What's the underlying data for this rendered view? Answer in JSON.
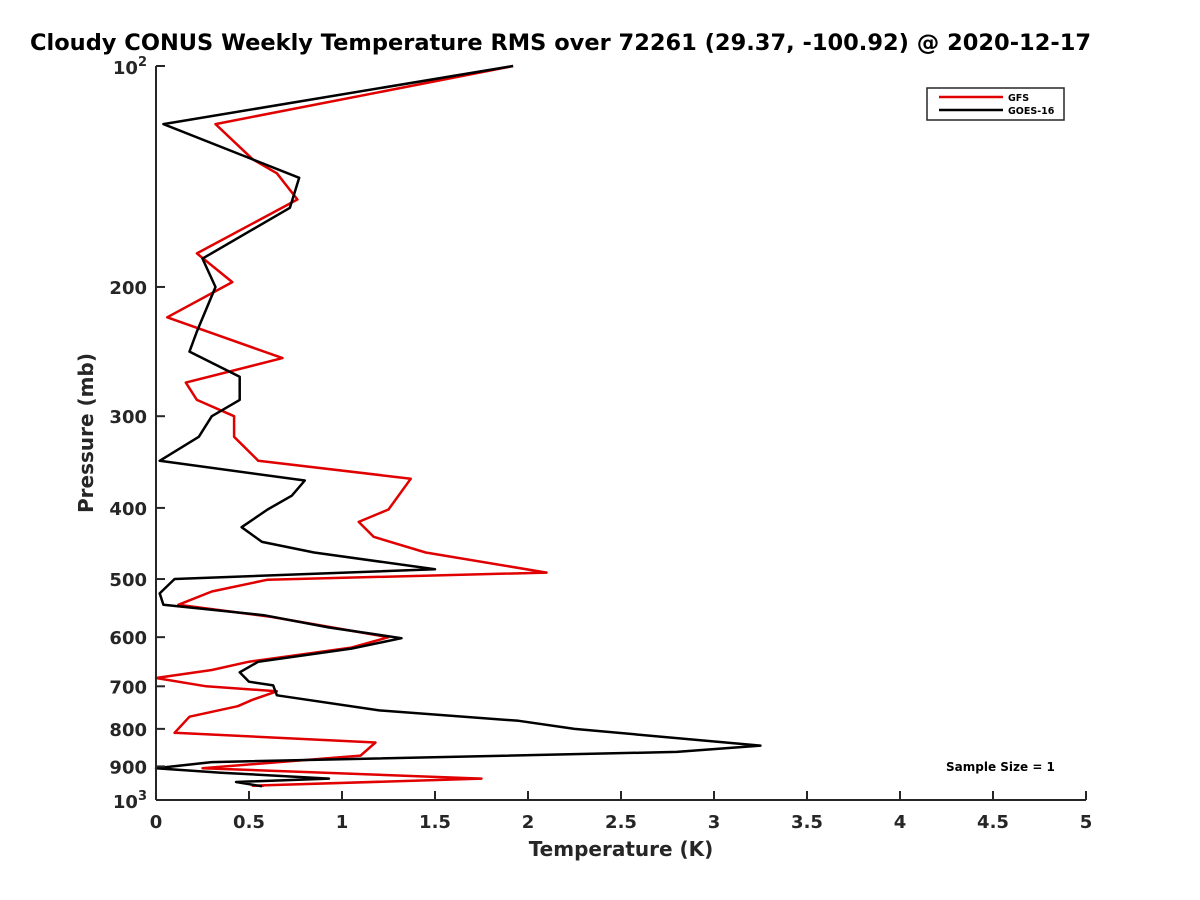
{
  "chart_data": {
    "type": "line",
    "title": "Cloudy CONUS Weekly Temperature RMS over 72261 (29.37, -100.92) @ 2020-12-17",
    "xlabel": "Temperature (K)",
    "ylabel": "Pressure (mb)",
    "xlim": [
      0,
      5
    ],
    "ylim": [
      100,
      1000
    ],
    "yscale": "log",
    "yreversed": true,
    "grid": false,
    "legend_position": "top-right",
    "x_ticks": [
      {
        "value": 0,
        "label": "0"
      },
      {
        "value": 0.5,
        "label": "0.5"
      },
      {
        "value": 1,
        "label": "1"
      },
      {
        "value": 1.5,
        "label": "1.5"
      },
      {
        "value": 2,
        "label": "2"
      },
      {
        "value": 2.5,
        "label": "2.5"
      },
      {
        "value": 3,
        "label": "3"
      },
      {
        "value": 3.5,
        "label": "3.5"
      },
      {
        "value": 4,
        "label": "4"
      },
      {
        "value": 4.5,
        "label": "4.5"
      },
      {
        "value": 5,
        "label": "5"
      }
    ],
    "y_ticks": [
      {
        "value": 100,
        "base": "10",
        "exp": "2"
      },
      {
        "value": 200,
        "label": "200"
      },
      {
        "value": 300,
        "label": "300"
      },
      {
        "value": 400,
        "label": "400"
      },
      {
        "value": 500,
        "label": "500"
      },
      {
        "value": 600,
        "label": "600"
      },
      {
        "value": 700,
        "label": "700"
      },
      {
        "value": 800,
        "label": "800"
      },
      {
        "value": 900,
        "label": "900"
      },
      {
        "value": 1000,
        "base": "10",
        "exp": "3"
      }
    ],
    "annotation": "Sample Size = 1",
    "series": [
      {
        "name": "GFS",
        "color": "#e00000",
        "points": [
          {
            "x": 1.92,
            "p": 100
          },
          {
            "x": 0.32,
            "p": 120
          },
          {
            "x": 0.52,
            "p": 134
          },
          {
            "x": 0.65,
            "p": 140
          },
          {
            "x": 0.76,
            "p": 152
          },
          {
            "x": 0.22,
            "p": 180
          },
          {
            "x": 0.41,
            "p": 197
          },
          {
            "x": 0.06,
            "p": 220
          },
          {
            "x": 0.68,
            "p": 250
          },
          {
            "x": 0.16,
            "p": 270
          },
          {
            "x": 0.22,
            "p": 285
          },
          {
            "x": 0.42,
            "p": 300
          },
          {
            "x": 0.42,
            "p": 320
          },
          {
            "x": 0.55,
            "p": 345
          },
          {
            "x": 1.37,
            "p": 365
          },
          {
            "x": 1.25,
            "p": 402
          },
          {
            "x": 1.09,
            "p": 418
          },
          {
            "x": 1.17,
            "p": 438
          },
          {
            "x": 1.45,
            "p": 460
          },
          {
            "x": 2.1,
            "p": 490
          },
          {
            "x": 0.6,
            "p": 501
          },
          {
            "x": 0.3,
            "p": 520
          },
          {
            "x": 0.12,
            "p": 542
          },
          {
            "x": 0.62,
            "p": 563
          },
          {
            "x": 1.25,
            "p": 600
          },
          {
            "x": 1.05,
            "p": 620
          },
          {
            "x": 0.5,
            "p": 648
          },
          {
            "x": 0.3,
            "p": 665
          },
          {
            "x": 0.0,
            "p": 682
          },
          {
            "x": 0.27,
            "p": 700
          },
          {
            "x": 0.65,
            "p": 711
          },
          {
            "x": 0.52,
            "p": 730
          },
          {
            "x": 0.44,
            "p": 745
          },
          {
            "x": 0.18,
            "p": 770
          },
          {
            "x": 0.1,
            "p": 810
          },
          {
            "x": 1.18,
            "p": 835
          },
          {
            "x": 1.1,
            "p": 870
          },
          {
            "x": 0.25,
            "p": 905
          },
          {
            "x": 1.75,
            "p": 935
          },
          {
            "x": 0.52,
            "p": 956
          },
          {
            "x": 0.58,
            "p": 956
          }
        ]
      },
      {
        "name": "GOES-16",
        "color": "#000000",
        "points": [
          {
            "x": 1.92,
            "p": 100
          },
          {
            "x": 0.04,
            "p": 120
          },
          {
            "x": 0.77,
            "p": 142
          },
          {
            "x": 0.72,
            "p": 156
          },
          {
            "x": 0.25,
            "p": 183
          },
          {
            "x": 0.32,
            "p": 200
          },
          {
            "x": 0.22,
            "p": 230
          },
          {
            "x": 0.18,
            "p": 245
          },
          {
            "x": 0.45,
            "p": 265
          },
          {
            "x": 0.45,
            "p": 285
          },
          {
            "x": 0.3,
            "p": 300
          },
          {
            "x": 0.23,
            "p": 320
          },
          {
            "x": 0.02,
            "p": 345
          },
          {
            "x": 0.8,
            "p": 367
          },
          {
            "x": 0.73,
            "p": 385
          },
          {
            "x": 0.6,
            "p": 402
          },
          {
            "x": 0.46,
            "p": 425
          },
          {
            "x": 0.57,
            "p": 445
          },
          {
            "x": 0.85,
            "p": 460
          },
          {
            "x": 1.5,
            "p": 485
          },
          {
            "x": 0.1,
            "p": 500
          },
          {
            "x": 0.02,
            "p": 523
          },
          {
            "x": 0.04,
            "p": 542
          },
          {
            "x": 0.58,
            "p": 560
          },
          {
            "x": 0.93,
            "p": 582
          },
          {
            "x": 1.32,
            "p": 602
          },
          {
            "x": 1.05,
            "p": 622
          },
          {
            "x": 0.55,
            "p": 648
          },
          {
            "x": 0.45,
            "p": 670
          },
          {
            "x": 0.5,
            "p": 690
          },
          {
            "x": 0.63,
            "p": 698
          },
          {
            "x": 0.65,
            "p": 720
          },
          {
            "x": 1.2,
            "p": 755
          },
          {
            "x": 1.95,
            "p": 780
          },
          {
            "x": 2.25,
            "p": 800
          },
          {
            "x": 3.25,
            "p": 843
          },
          {
            "x": 2.8,
            "p": 860
          },
          {
            "x": 0.3,
            "p": 888
          },
          {
            "x": 0.0,
            "p": 905
          },
          {
            "x": 0.35,
            "p": 918
          },
          {
            "x": 0.93,
            "p": 935
          },
          {
            "x": 0.43,
            "p": 945
          },
          {
            "x": 0.57,
            "p": 958
          }
        ]
      }
    ]
  }
}
